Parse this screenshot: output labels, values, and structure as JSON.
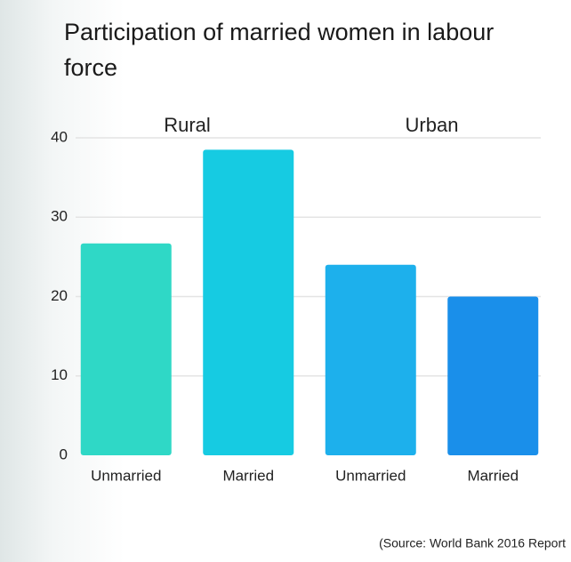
{
  "chart_data": {
    "type": "bar",
    "title": "Participation of married women in labour force",
    "groups": [
      "Rural",
      "Urban"
    ],
    "categories": [
      "Unmarried",
      "Married",
      "Unmarried",
      "Married"
    ],
    "values": [
      26.7,
      38.5,
      24,
      20
    ],
    "colors": [
      "#2fd8c6",
      "#16cbe2",
      "#1db0ec",
      "#1a8fea"
    ],
    "ylim": [
      0,
      40
    ],
    "yticks": [
      0,
      10,
      20,
      30,
      40
    ],
    "grid": true,
    "source": "(Source: World Bank 2016 Report"
  }
}
